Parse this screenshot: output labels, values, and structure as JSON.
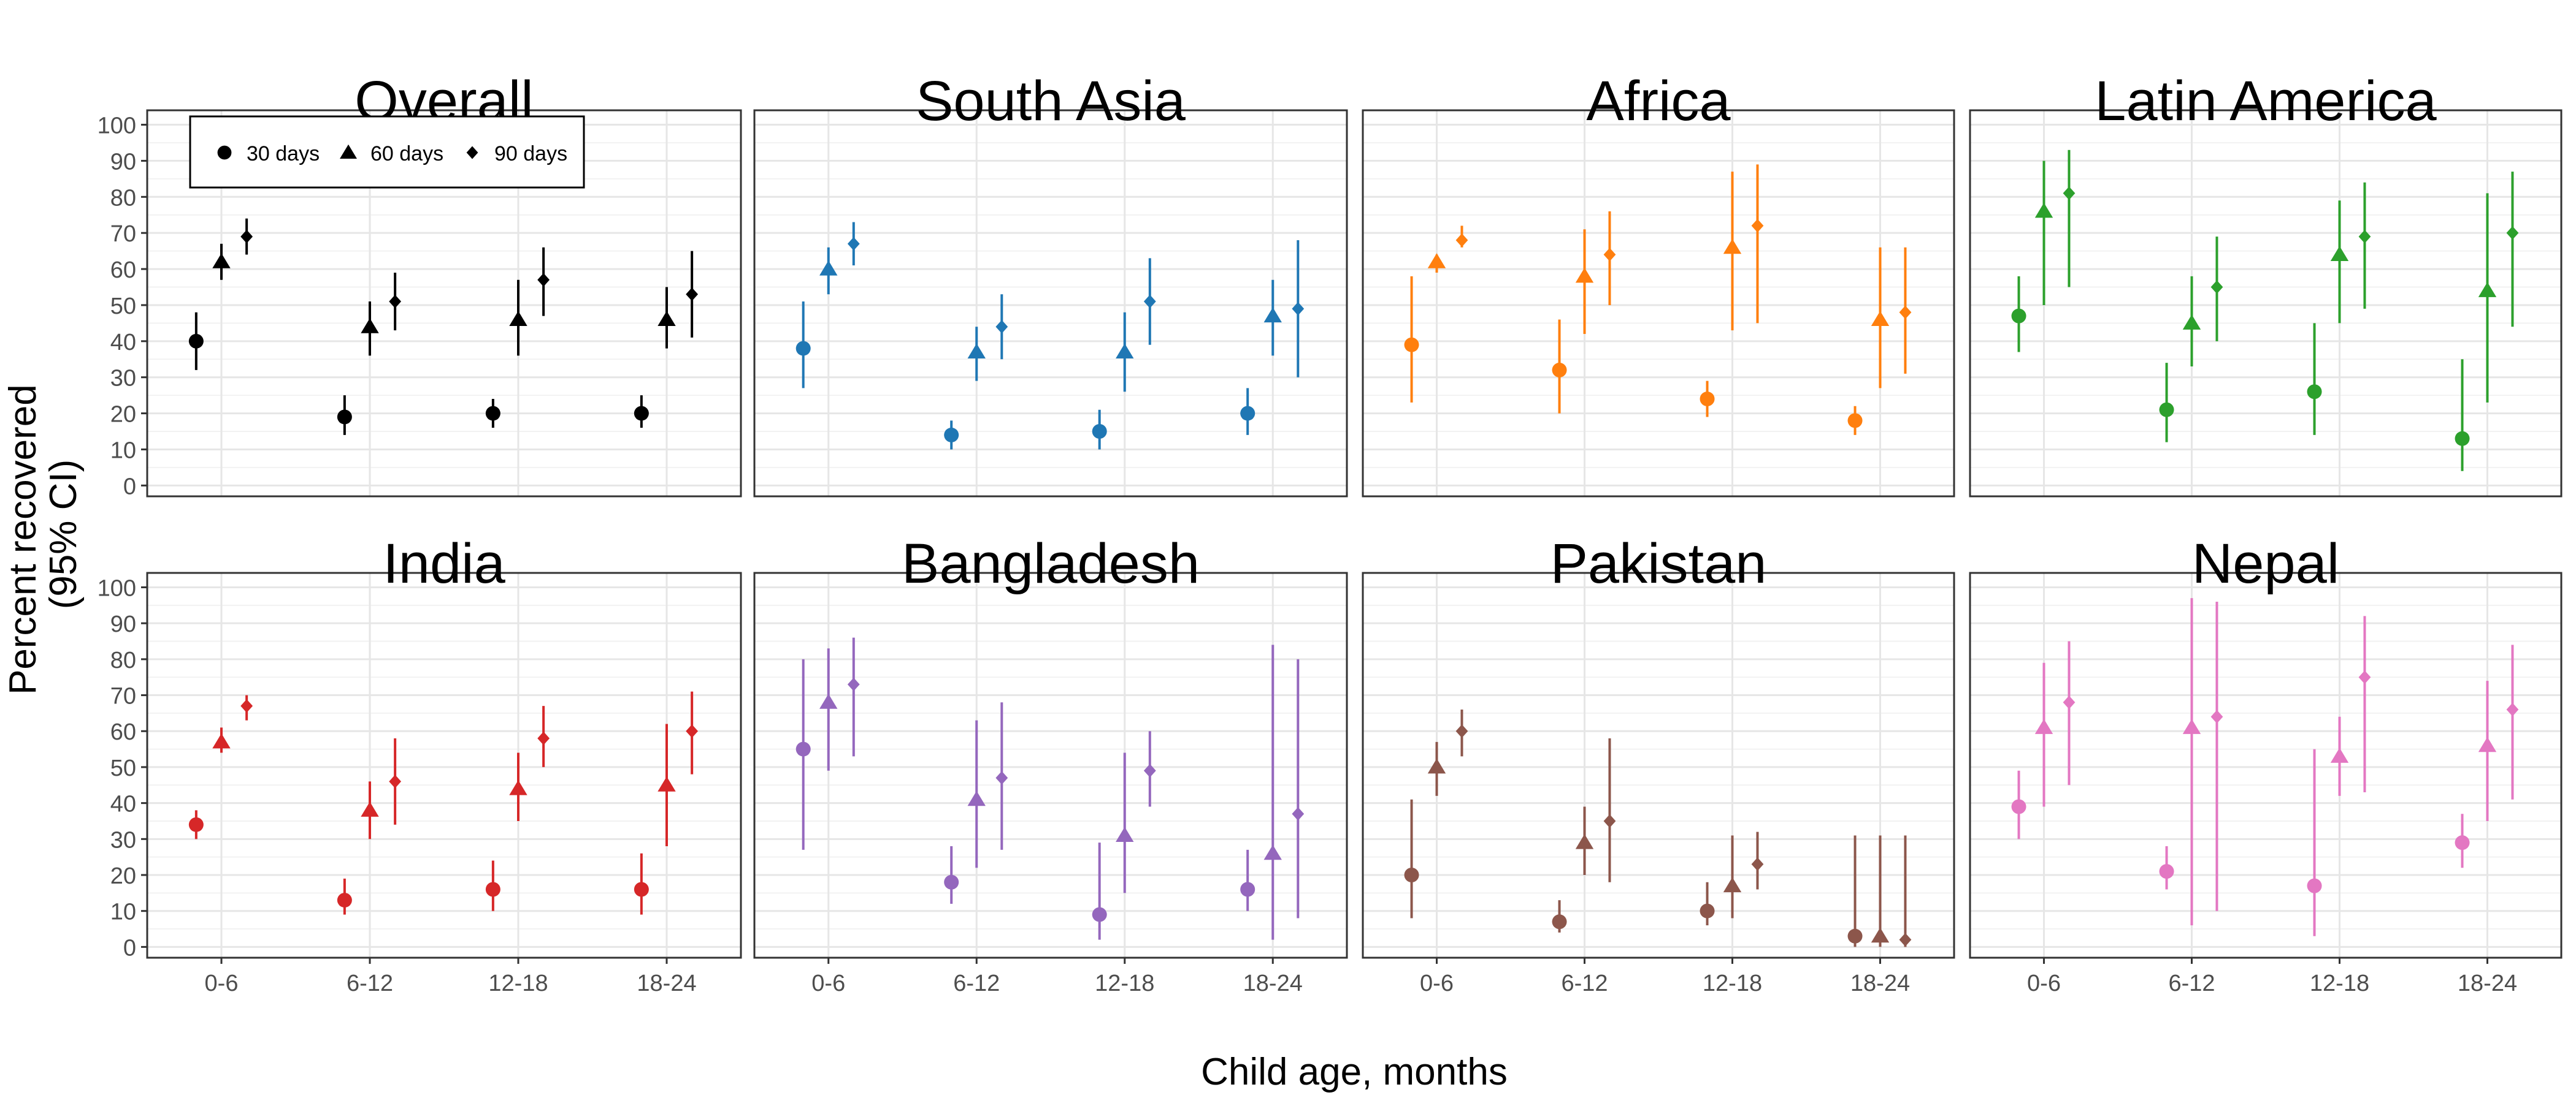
{
  "chart_data": {
    "type": "scatter",
    "subtype": "point-range faceted",
    "ylabel": "Percent recovered (95% CI)",
    "ylabel_lines": [
      "Percent recovered",
      "(95% CI)"
    ],
    "xlabel": "Child age, months",
    "categories": [
      "0-6",
      "6-12",
      "12-18",
      "18-24"
    ],
    "ylim": [
      -3,
      104
    ],
    "yticks": [
      0,
      10,
      20,
      30,
      40,
      50,
      60,
      70,
      80,
      90,
      100
    ],
    "grid": true,
    "legend": {
      "placement": "top-left inside first panel",
      "entries": [
        {
          "label": "30 days",
          "shape": "circle"
        },
        {
          "label": "60 days",
          "shape": "triangle"
        },
        {
          "label": "90 days",
          "shape": "diamond"
        }
      ]
    },
    "panels": [
      {
        "title": "Overall",
        "color": "#000000",
        "series": [
          {
            "name": "30 days",
            "values": [
              [
                40,
                32,
                48
              ],
              [
                19,
                14,
                25
              ],
              [
                20,
                16,
                24
              ],
              [
                20,
                16,
                25
              ]
            ]
          },
          {
            "name": "60 days",
            "values": [
              [
                62,
                57,
                67
              ],
              [
                44,
                36,
                51
              ],
              [
                46,
                36,
                57
              ],
              [
                46,
                38,
                55
              ]
            ]
          },
          {
            "name": "90 days",
            "values": [
              [
                69,
                64,
                74
              ],
              [
                51,
                43,
                59
              ],
              [
                57,
                47,
                66
              ],
              [
                53,
                41,
                65
              ]
            ]
          }
        ]
      },
      {
        "title": "South Asia",
        "color": "#1F77B4",
        "series": [
          {
            "name": "30 days",
            "values": [
              [
                38,
                27,
                51
              ],
              [
                14,
                10,
                18
              ],
              [
                15,
                10,
                21
              ],
              [
                20,
                14,
                27
              ]
            ]
          },
          {
            "name": "60 days",
            "values": [
              [
                60,
                53,
                66
              ],
              [
                37,
                29,
                44
              ],
              [
                37,
                26,
                48
              ],
              [
                47,
                36,
                57
              ]
            ]
          },
          {
            "name": "90 days",
            "values": [
              [
                67,
                61,
                73
              ],
              [
                44,
                35,
                53
              ],
              [
                51,
                39,
                63
              ],
              [
                49,
                30,
                68
              ]
            ]
          }
        ]
      },
      {
        "title": "Africa",
        "color": "#FF7F0E",
        "series": [
          {
            "name": "30 days",
            "values": [
              [
                39,
                23,
                58
              ],
              [
                32,
                20,
                46
              ],
              [
                24,
                19,
                29
              ],
              [
                18,
                14,
                22
              ]
            ]
          },
          {
            "name": "60 days",
            "values": [
              [
                62,
                59,
                64
              ],
              [
                58,
                42,
                71
              ],
              [
                66,
                43,
                87
              ],
              [
                46,
                27,
                66
              ]
            ]
          },
          {
            "name": "90 days",
            "values": [
              [
                68,
                66,
                72
              ],
              [
                64,
                50,
                76
              ],
              [
                72,
                45,
                89
              ],
              [
                48,
                31,
                66
              ]
            ]
          }
        ]
      },
      {
        "title": "Latin America",
        "color": "#2CA02C",
        "series": [
          {
            "name": "30 days",
            "values": [
              [
                47,
                37,
                58
              ],
              [
                21,
                12,
                34
              ],
              [
                26,
                14,
                45
              ],
              [
                13,
                4,
                35
              ]
            ]
          },
          {
            "name": "60 days",
            "values": [
              [
                76,
                50,
                90
              ],
              [
                45,
                33,
                58
              ],
              [
                64,
                45,
                79
              ],
              [
                54,
                23,
                81
              ]
            ]
          },
          {
            "name": "90 days",
            "values": [
              [
                81,
                55,
                93
              ],
              [
                55,
                40,
                69
              ],
              [
                69,
                49,
                84
              ],
              [
                70,
                44,
                87
              ]
            ]
          }
        ]
      },
      {
        "title": "India",
        "color": "#D62728",
        "series": [
          {
            "name": "30 days",
            "values": [
              [
                34,
                30,
                38
              ],
              [
                13,
                9,
                19
              ],
              [
                16,
                10,
                24
              ],
              [
                16,
                9,
                26
              ]
            ]
          },
          {
            "name": "60 days",
            "values": [
              [
                57,
                54,
                61
              ],
              [
                38,
                30,
                46
              ],
              [
                44,
                35,
                54
              ],
              [
                45,
                28,
                62
              ]
            ]
          },
          {
            "name": "90 days",
            "values": [
              [
                67,
                63,
                70
              ],
              [
                46,
                34,
                58
              ],
              [
                58,
                50,
                67
              ],
              [
                60,
                48,
                71
              ]
            ]
          }
        ]
      },
      {
        "title": "Bangladesh",
        "color": "#9467BD",
        "series": [
          {
            "name": "30 days",
            "values": [
              [
                55,
                27,
                80
              ],
              [
                18,
                12,
                28
              ],
              [
                9,
                2,
                29
              ],
              [
                16,
                10,
                27
              ]
            ]
          },
          {
            "name": "60 days",
            "values": [
              [
                68,
                49,
                83
              ],
              [
                41,
                22,
                63
              ],
              [
                31,
                15,
                54
              ],
              [
                26,
                2,
                84
              ]
            ]
          },
          {
            "name": "90 days",
            "values": [
              [
                73,
                53,
                86
              ],
              [
                47,
                27,
                68
              ],
              [
                49,
                39,
                60
              ],
              [
                37,
                8,
                80
              ]
            ]
          }
        ]
      },
      {
        "title": "Pakistan",
        "color": "#8C564B",
        "series": [
          {
            "name": "30 days",
            "values": [
              [
                20,
                8,
                41
              ],
              [
                7,
                4,
                13
              ],
              [
                10,
                6,
                18
              ],
              [
                3,
                0,
                31
              ]
            ]
          },
          {
            "name": "60 days",
            "values": [
              [
                50,
                42,
                57
              ],
              [
                29,
                20,
                39
              ],
              [
                17,
                8,
                31
              ],
              [
                3,
                0,
                31
              ]
            ]
          },
          {
            "name": "90 days",
            "values": [
              [
                60,
                53,
                66
              ],
              [
                35,
                18,
                58
              ],
              [
                23,
                16,
                32
              ],
              [
                2,
                0,
                31
              ]
            ]
          }
        ]
      },
      {
        "title": "Nepal",
        "color": "#E377C2",
        "series": [
          {
            "name": "30 days",
            "values": [
              [
                39,
                30,
                49
              ],
              [
                21,
                16,
                28
              ],
              [
                17,
                3,
                55
              ],
              [
                29,
                22,
                37
              ]
            ]
          },
          {
            "name": "60 days",
            "values": [
              [
                61,
                39,
                79
              ],
              [
                61,
                6,
                97
              ],
              [
                53,
                42,
                64
              ],
              [
                56,
                35,
                74
              ]
            ]
          },
          {
            "name": "90 days",
            "values": [
              [
                68,
                45,
                85
              ],
              [
                64,
                10,
                96
              ],
              [
                75,
                43,
                92
              ],
              [
                66,
                41,
                84
              ]
            ]
          }
        ]
      }
    ]
  }
}
